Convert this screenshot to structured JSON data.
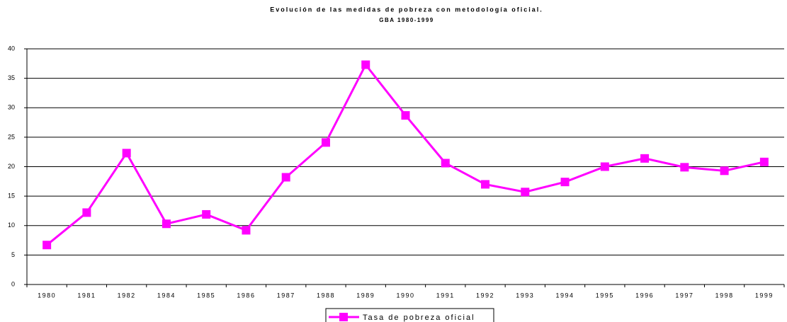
{
  "chart_data": {
    "type": "line",
    "title": "Evolución de las medidas de pobreza con metodología oficial.",
    "subtitle": "GBA 1980-1999",
    "categories": [
      "1980",
      "1981",
      "1982",
      "1984",
      "1985",
      "1986",
      "1987",
      "1988",
      "1989",
      "1990",
      "1991",
      "1992",
      "1993",
      "1994",
      "1995",
      "1996",
      "1997",
      "1998",
      "1999"
    ],
    "series": [
      {
        "name": "Tasa de pobreza oficial",
        "color": "#ff00ff",
        "values": [
          6.7,
          12.2,
          22.3,
          10.3,
          11.9,
          9.2,
          18.2,
          24.1,
          37.3,
          28.7,
          20.6,
          17.0,
          15.7,
          17.4,
          20.0,
          21.4,
          19.9,
          19.3,
          20.8
        ]
      }
    ],
    "ylim": [
      0,
      40
    ],
    "yticks": [
      0,
      5,
      10,
      15,
      20,
      25,
      30,
      35,
      40
    ],
    "grid": true
  }
}
